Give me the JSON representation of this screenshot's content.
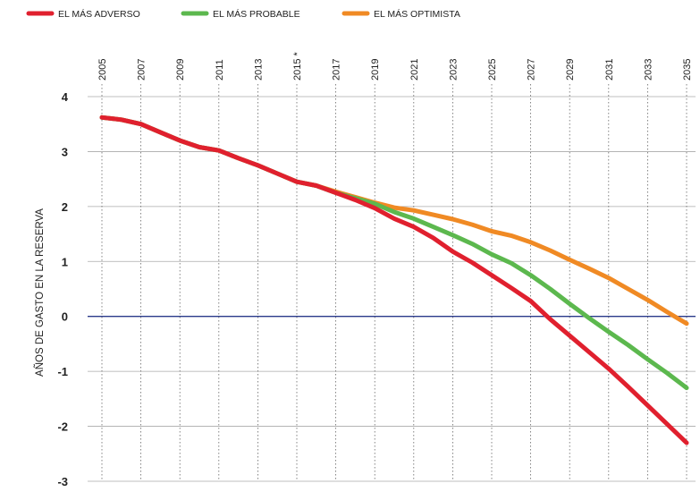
{
  "chart_data": {
    "type": "line",
    "title": "",
    "xlabel": "",
    "ylabel": "AÑOS DE GASTO EN LA RESERVA",
    "x_tick_labels": [
      "2005",
      "2007",
      "2009",
      "2011",
      "2013",
      "2015 *",
      "2017",
      "2019",
      "2021",
      "2023",
      "2025",
      "2027",
      "2029",
      "2031",
      "2033",
      "2035"
    ],
    "y_tick_labels": [
      "4",
      "3",
      "2",
      "1",
      "0",
      "-1",
      "-2",
      "-3"
    ],
    "xlim": [
      2004.8,
      2035.5
    ],
    "ylim": [
      -3,
      4
    ],
    "grid": true,
    "legend_position": "top-left",
    "colors": {
      "adverso": "#e0202e",
      "probable": "#5cb84e",
      "optimista": "#f08a24",
      "zero_line": "#2a3a8a",
      "grid": "#aaaaaa"
    },
    "series": [
      {
        "name": "EL MÁS ADVERSO",
        "color": "#e0202e",
        "points": [
          [
            2005,
            3.62
          ],
          [
            2006,
            3.58
          ],
          [
            2007,
            3.5
          ],
          [
            2008,
            3.35
          ],
          [
            2009,
            3.2
          ],
          [
            2010,
            3.08
          ],
          [
            2011,
            3.02
          ],
          [
            2012,
            2.88
          ],
          [
            2013,
            2.75
          ],
          [
            2014,
            2.6
          ],
          [
            2015,
            2.45
          ],
          [
            2016,
            2.38
          ],
          [
            2017,
            2.25
          ],
          [
            2018,
            2.12
          ],
          [
            2019,
            1.97
          ],
          [
            2020,
            1.78
          ],
          [
            2021,
            1.63
          ],
          [
            2022,
            1.43
          ],
          [
            2023,
            1.18
          ],
          [
            2024,
            0.98
          ],
          [
            2025,
            0.75
          ],
          [
            2026,
            0.52
          ],
          [
            2027,
            0.28
          ],
          [
            2028,
            -0.05
          ],
          [
            2029,
            -0.35
          ],
          [
            2030,
            -0.65
          ],
          [
            2031,
            -0.95
          ],
          [
            2032,
            -1.28
          ],
          [
            2033,
            -1.62
          ],
          [
            2034,
            -1.96
          ],
          [
            2035,
            -2.3
          ]
        ]
      },
      {
        "name": "EL MÁS PROBABLE",
        "color": "#5cb84e",
        "points": [
          [
            2005,
            3.62
          ],
          [
            2006,
            3.58
          ],
          [
            2007,
            3.5
          ],
          [
            2008,
            3.35
          ],
          [
            2009,
            3.2
          ],
          [
            2010,
            3.08
          ],
          [
            2011,
            3.02
          ],
          [
            2012,
            2.88
          ],
          [
            2013,
            2.75
          ],
          [
            2014,
            2.6
          ],
          [
            2015,
            2.45
          ],
          [
            2016,
            2.38
          ],
          [
            2017,
            2.25
          ],
          [
            2018,
            2.15
          ],
          [
            2019,
            2.05
          ],
          [
            2020,
            1.9
          ],
          [
            2021,
            1.78
          ],
          [
            2022,
            1.63
          ],
          [
            2023,
            1.48
          ],
          [
            2024,
            1.32
          ],
          [
            2025,
            1.13
          ],
          [
            2026,
            0.97
          ],
          [
            2027,
            0.75
          ],
          [
            2028,
            0.5
          ],
          [
            2029,
            0.23
          ],
          [
            2030,
            -0.03
          ],
          [
            2031,
            -0.28
          ],
          [
            2032,
            -0.52
          ],
          [
            2033,
            -0.78
          ],
          [
            2034,
            -1.03
          ],
          [
            2035,
            -1.3
          ]
        ]
      },
      {
        "name": "EL MÁS OPTIMISTA",
        "color": "#f08a24",
        "points": [
          [
            2005,
            3.62
          ],
          [
            2006,
            3.58
          ],
          [
            2007,
            3.5
          ],
          [
            2008,
            3.35
          ],
          [
            2009,
            3.2
          ],
          [
            2010,
            3.08
          ],
          [
            2011,
            3.02
          ],
          [
            2012,
            2.88
          ],
          [
            2013,
            2.75
          ],
          [
            2014,
            2.6
          ],
          [
            2015,
            2.45
          ],
          [
            2016,
            2.38
          ],
          [
            2017,
            2.27
          ],
          [
            2018,
            2.17
          ],
          [
            2019,
            2.07
          ],
          [
            2020,
            1.98
          ],
          [
            2021,
            1.93
          ],
          [
            2022,
            1.85
          ],
          [
            2023,
            1.77
          ],
          [
            2024,
            1.67
          ],
          [
            2025,
            1.55
          ],
          [
            2026,
            1.47
          ],
          [
            2027,
            1.35
          ],
          [
            2028,
            1.2
          ],
          [
            2029,
            1.03
          ],
          [
            2030,
            0.87
          ],
          [
            2031,
            0.7
          ],
          [
            2032,
            0.5
          ],
          [
            2033,
            0.3
          ],
          [
            2034,
            0.08
          ],
          [
            2035,
            -0.13
          ]
        ]
      }
    ]
  }
}
